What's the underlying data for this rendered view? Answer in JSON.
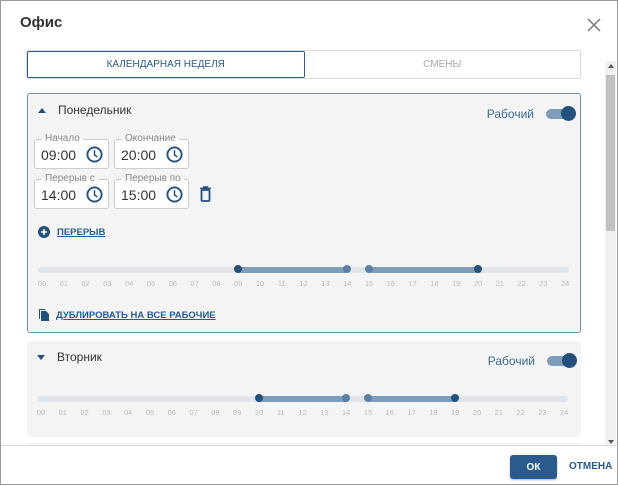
{
  "dialog": {
    "title": "Офис",
    "close_icon": "close-icon"
  },
  "tabs": [
    {
      "label": "КАЛЕНДАРНАЯ НЕДЕЛЯ",
      "active": true
    },
    {
      "label": "СМЕНЫ",
      "active": false
    }
  ],
  "days": [
    {
      "name": "Понедельник",
      "expanded": true,
      "working_label": "Рабочий",
      "working": true,
      "fields": {
        "start": {
          "label": "Начало",
          "value": "09:00"
        },
        "end": {
          "label": "Окончание",
          "value": "20:00"
        },
        "break_from": {
          "label": "Перерыв с",
          "value": "14:00"
        },
        "break_to": {
          "label": "Перерыв по",
          "value": "15:00"
        }
      },
      "add_break_label": "ПЕРЕРЫВ",
      "duplicate_label": "ДУБЛИРОВАТЬ НА ВСЕ РАБОЧИЕ",
      "segments": [
        [
          9,
          14
        ],
        [
          15,
          20
        ]
      ]
    },
    {
      "name": "Вторник",
      "expanded": false,
      "working_label": "Рабочий",
      "working": true,
      "segments": [
        [
          10,
          14
        ],
        [
          15,
          19
        ]
      ]
    }
  ],
  "hour_labels": [
    "00",
    "01",
    "02",
    "03",
    "04",
    "05",
    "06",
    "07",
    "08",
    "09",
    "10",
    "11",
    "12",
    "13",
    "14",
    "15",
    "16",
    "17",
    "18",
    "19",
    "20",
    "21",
    "22",
    "23",
    "24"
  ],
  "footer": {
    "ok": "ОК",
    "cancel": "ОТМЕНА"
  },
  "colors": {
    "accent": "#2a5b8c",
    "segment": "#7f9db9",
    "track": "#e1e5ea"
  }
}
